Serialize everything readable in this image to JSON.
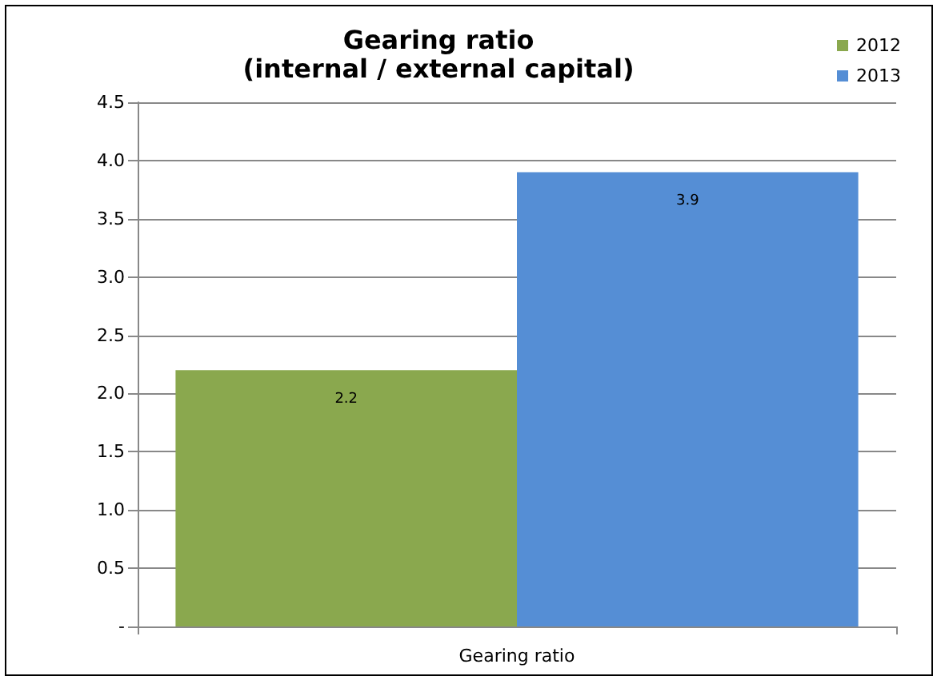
{
  "chart_data": {
    "type": "bar",
    "title": "Gearing ratio",
    "subtitle": "(internal / external capital)",
    "xlabel": "Gearing ratio",
    "categories": [
      null
    ],
    "series": [
      {
        "name": "2012",
        "color": "#8aa84e",
        "values": [
          2.2
        ]
      },
      {
        "name": "2013",
        "color": "#558ed5",
        "values": [
          3.9
        ]
      }
    ],
    "ylim": [
      0,
      4.5
    ],
    "yticks": [
      {
        "value": 0,
        "label": "-"
      },
      0.5,
      {
        "value": 1,
        "label": "1.0"
      },
      1.5,
      {
        "value": 2,
        "label": "2.0"
      },
      2.5,
      {
        "value": 3,
        "label": "3.0"
      },
      3.5,
      {
        "value": 4,
        "label": "4.0"
      },
      4.5
    ],
    "grid": "y",
    "legend": "top right",
    "data_labels": true
  }
}
